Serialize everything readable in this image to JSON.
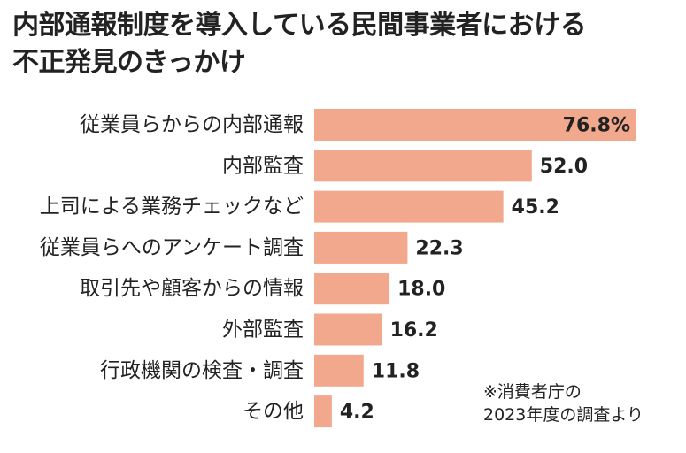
{
  "colors": {
    "bar": "#f2a88c",
    "text": "#222222",
    "background": "#ffffff"
  },
  "chart_data": {
    "type": "bar",
    "orientation": "horizontal",
    "title_lines": [
      "内部通報制度を導入している民間事業者における",
      "不正発見のきっかけ"
    ],
    "categories": [
      "従業員らからの内部通報",
      "内部監査",
      "上司による業務チェックなど",
      "従業員らへのアンケート調査",
      "取引先や顧客からの情報",
      "外部監査",
      "行政機関の検査・調査",
      "その他"
    ],
    "values": [
      76.8,
      52.0,
      45.2,
      22.3,
      18.0,
      16.2,
      11.8,
      4.2
    ],
    "value_labels": [
      "76.8%",
      "52.0",
      "45.2",
      "22.3",
      "18.0",
      "16.2",
      "11.8",
      "4.2"
    ],
    "unit": "%",
    "xlim": [
      0,
      76.8
    ],
    "grid": false,
    "legend": "none",
    "note_lines": [
      "※消費者庁の",
      "2023年度の調査より"
    ]
  }
}
